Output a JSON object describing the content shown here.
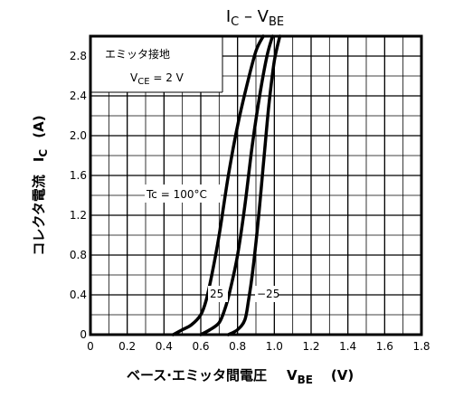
{
  "chart_data": {
    "type": "line",
    "title": {
      "main": "I",
      "sub1": "C",
      "mid": " – V",
      "sub2": "BE"
    },
    "xlabel": {
      "main": "ベース·エミッタ間電圧",
      "sym": "V",
      "sub": "BE",
      "unit": "(V)"
    },
    "ylabel": {
      "main": "コレクタ電流",
      "sym": "I",
      "sub": "C",
      "unit": "(A)"
    },
    "xlim": [
      0,
      1.8
    ],
    "ylim": [
      0,
      3.0
    ],
    "x_ticks": [
      "0",
      "0.2",
      "0.4",
      "0.6",
      "0.8",
      "1.0",
      "1.2",
      "1.4",
      "1.6",
      "1.8"
    ],
    "y_ticks": [
      "0",
      "0.4",
      "0.8",
      "1.2",
      "1.6",
      "2.0",
      "2.4",
      "2.8"
    ],
    "grid": true,
    "legend_box": {
      "line1": "エミッタ接地",
      "line2": {
        "sym": "V",
        "sub": "CE",
        "rest": " = 2 V"
      }
    },
    "series": [
      {
        "name": "100°C",
        "x": [
          0.45,
          0.5,
          0.55,
          0.6,
          0.63,
          0.66,
          0.7,
          0.75,
          0.8,
          0.85,
          0.9,
          0.94
        ],
        "y": [
          0.0,
          0.05,
          0.1,
          0.2,
          0.35,
          0.6,
          1.0,
          1.6,
          2.1,
          2.5,
          2.85,
          3.0
        ]
      },
      {
        "name": "25",
        "x": [
          0.6,
          0.65,
          0.7,
          0.73,
          0.76,
          0.8,
          0.84,
          0.88,
          0.92,
          0.96,
          0.99
        ],
        "y": [
          0.0,
          0.05,
          0.12,
          0.25,
          0.45,
          0.8,
          1.3,
          1.9,
          2.4,
          2.8,
          3.0
        ]
      },
      {
        "name": "-25",
        "x": [
          0.75,
          0.8,
          0.84,
          0.86,
          0.88,
          0.91,
          0.94,
          0.97,
          1.0,
          1.03
        ],
        "y": [
          0.0,
          0.05,
          0.15,
          0.35,
          0.6,
          1.1,
          1.7,
          2.3,
          2.75,
          3.0
        ]
      }
    ],
    "annotations": {
      "tc_label": "Tc = 100°C",
      "label_25": "25",
      "label_m25": "−25"
    }
  }
}
